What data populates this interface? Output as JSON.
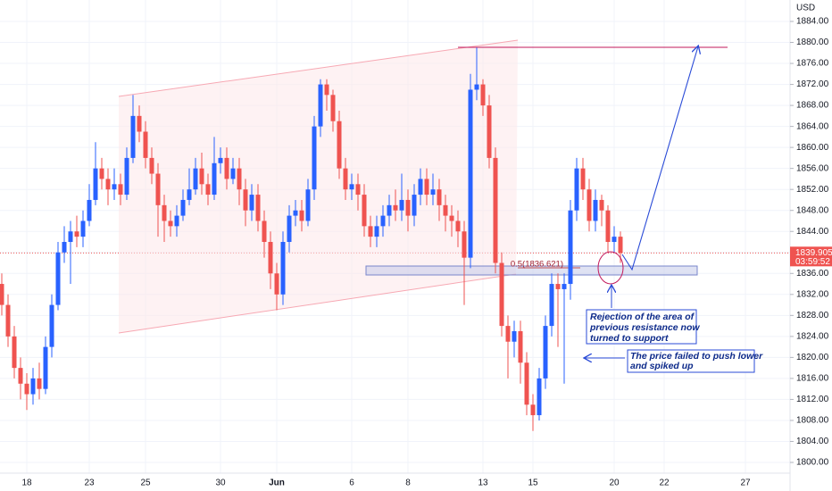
{
  "chart_data": {
    "type": "candlestick",
    "y_axis_label": "USD",
    "countdown": "03:59:52",
    "fib_label": "0.5(1836.621)",
    "annotations": [
      {
        "lines": [
          "Rejection of the area of",
          "previous resistance now",
          "turned to support"
        ]
      },
      {
        "lines": [
          "The price failed to push lower",
          "and spiked up"
        ]
      }
    ],
    "up_color": "#2962ff",
    "down_color": "#ef5350",
    "ylim": [
      1798,
      1888
    ],
    "yticks": [
      {
        "value": 1800,
        "label": "1800.00"
      },
      {
        "value": 1804,
        "label": "1804.00"
      },
      {
        "value": 1808,
        "label": "1808.00"
      },
      {
        "value": 1812,
        "label": "1812.00"
      },
      {
        "value": 1816,
        "label": "1816.00"
      },
      {
        "value": 1820,
        "label": "1820.00"
      },
      {
        "value": 1824,
        "label": "1824.00"
      },
      {
        "value": 1828,
        "label": "1828.00"
      },
      {
        "value": 1832,
        "label": "1832.00"
      },
      {
        "value": 1836,
        "label": "1836.00"
      },
      {
        "value": 1840,
        "label": "1840.00"
      },
      {
        "value": 1844,
        "label": "1844.00"
      },
      {
        "value": 1848,
        "label": "1848.00"
      },
      {
        "value": 1852,
        "label": "1852.00"
      },
      {
        "value": 1856,
        "label": "1856.00"
      },
      {
        "value": 1860,
        "label": "1860.00"
      },
      {
        "value": 1864,
        "label": "1864.00"
      },
      {
        "value": 1868,
        "label": "1868.00"
      },
      {
        "value": 1872,
        "label": "1872.00"
      },
      {
        "value": 1876,
        "label": "1876.00"
      },
      {
        "value": 1880,
        "label": "1880.00"
      },
      {
        "value": 1884,
        "label": "1884.00"
      }
    ],
    "categories": [
      null,
      null,
      null,
      null,
      "18",
      null,
      null,
      null,
      null,
      null,
      null,
      null,
      null,
      null,
      "23",
      null,
      null,
      null,
      null,
      null,
      null,
      null,
      null,
      "25",
      null,
      null,
      null,
      null,
      null,
      null,
      null,
      null,
      null,
      null,
      null,
      "30",
      null,
      null,
      null,
      null,
      null,
      null,
      null,
      null,
      "Jun",
      null,
      null,
      null,
      null,
      null,
      null,
      null,
      null,
      null,
      null,
      null,
      "6",
      null,
      null,
      null,
      null,
      null,
      null,
      null,
      null,
      "8",
      null,
      null,
      null,
      null,
      null,
      null,
      null,
      null,
      null,
      null,
      null,
      "13",
      null,
      null,
      null,
      null,
      null,
      null,
      null,
      "15",
      null,
      null,
      null,
      null,
      null,
      null,
      null,
      null,
      null,
      null,
      null,
      null,
      "20",
      null,
      null,
      null,
      null,
      null,
      null,
      null,
      "22",
      null,
      null,
      null,
      null,
      null,
      null,
      null,
      null,
      null,
      null,
      null,
      null,
      "27",
      null,
      null,
      null,
      null,
      null,
      null
    ],
    "open": [
      1834,
      1830,
      1824,
      1818,
      1815,
      1813,
      1816,
      1814,
      1822,
      1830,
      1840,
      1842,
      1844,
      1843,
      1846,
      1850,
      1856,
      1854,
      1852,
      1853,
      1851,
      1858,
      1866,
      1863,
      1858,
      1855,
      1849,
      1846,
      1845,
      1847,
      1850,
      1852,
      1856,
      1853,
      1851,
      1857,
      1858,
      1854,
      1856,
      1852,
      1848,
      1851,
      1846,
      1842,
      1836,
      1832,
      1842,
      1847,
      1848,
      1846,
      1852,
      1864,
      1872,
      1870,
      1865,
      1856,
      1852,
      1853,
      1851,
      1845,
      1843,
      1845,
      1847,
      1849,
      1848,
      1850,
      1847,
      1851,
      1854,
      1851,
      1852,
      1849,
      1847,
      1846,
      1844,
      1839,
      1871,
      1872,
      1868,
      1858,
      1838,
      1826,
      1823,
      1825,
      1819,
      1811,
      1809,
      1816,
      1826,
      1834,
      1833,
      1834,
      1848,
      1856,
      1852,
      1846,
      1850,
      1848,
      1842,
      1843,
      null,
      null,
      null,
      null,
      null,
      null,
      null,
      null,
      null,
      null,
      null,
      null,
      null,
      null,
      null,
      null,
      null,
      null,
      null,
      null,
      null,
      null,
      null,
      null,
      null,
      null
    ],
    "high": [
      1836,
      1832,
      1826,
      1820,
      1817,
      1818,
      1819,
      1824,
      1832,
      1842,
      1845,
      1846,
      1847,
      1848,
      1853,
      1861,
      1858,
      1856,
      1856,
      1855,
      1860,
      1870,
      1868,
      1865,
      1860,
      1857,
      1851,
      1848,
      1849,
      1852,
      1856,
      1858,
      1859,
      1855,
      1862,
      1860,
      1860,
      1858,
      1858,
      1854,
      1853,
      1853,
      1848,
      1844,
      1838,
      1844,
      1849,
      1850,
      1850,
      1854,
      1866,
      1873,
      1873,
      1871,
      1867,
      1858,
      1855,
      1855,
      1853,
      1847,
      1847,
      1849,
      1851,
      1852,
      1855,
      1852,
      1853,
      1856,
      1856,
      1855,
      1854,
      1851,
      1849,
      1848,
      1846,
      1874,
      1879,
      1873,
      1870,
      1860,
      1840,
      1828,
      1827,
      1827,
      1821,
      1813,
      1818,
      1828,
      1836,
      1836,
      1836,
      1850,
      1858,
      1858,
      1854,
      1852,
      1851,
      1849,
      1845,
      1844,
      null,
      null,
      null,
      null,
      null,
      null,
      null,
      null,
      null,
      null,
      null,
      null,
      null,
      null,
      null,
      null,
      null,
      null,
      null,
      null,
      null,
      null,
      null,
      null,
      null,
      null
    ],
    "low": [
      1828,
      1822,
      1816,
      1812,
      1810,
      1811,
      1812,
      1813,
      1820,
      1829,
      1838,
      1834,
      1841,
      1841,
      1845,
      1849,
      1852,
      1849,
      1850,
      1849,
      1850,
      1857,
      1861,
      1856,
      1853,
      1843,
      1842,
      1843,
      1843,
      1846,
      1849,
      1851,
      1851,
      1849,
      1850,
      1855,
      1852,
      1853,
      1849,
      1845,
      1846,
      1844,
      1839,
      1833,
      1829,
      1830,
      1840,
      1845,
      1844,
      1845,
      1850,
      1862,
      1867,
      1863,
      1854,
      1850,
      1850,
      1848,
      1843,
      1841,
      1841,
      1843,
      1845,
      1846,
      1846,
      1844,
      1845,
      1849,
      1849,
      1849,
      1846,
      1844,
      1843,
      1841,
      1830,
      1837,
      1869,
      1866,
      1856,
      1836,
      1824,
      1816,
      1820,
      1815,
      1809,
      1806,
      1808,
      1814,
      1824,
      1822,
      1815,
      1831,
      1846,
      1850,
      1844,
      1844,
      1845,
      1840,
      1840,
      1838,
      null,
      null,
      null,
      null,
      null,
      null,
      null,
      null,
      null,
      null,
      null,
      null,
      null,
      null,
      null,
      null,
      null,
      null,
      null,
      null,
      null,
      null,
      null,
      null,
      null,
      null
    ],
    "close": [
      1830,
      1824,
      1818,
      1815,
      1813,
      1816,
      1814,
      1822,
      1830,
      1840,
      1842,
      1844,
      1843,
      1846,
      1850,
      1856,
      1854,
      1852,
      1853,
      1851,
      1858,
      1866,
      1863,
      1858,
      1855,
      1849,
      1846,
      1845,
      1847,
      1850,
      1852,
      1856,
      1853,
      1851,
      1857,
      1858,
      1854,
      1856,
      1852,
      1848,
      1851,
      1846,
      1842,
      1836,
      1832,
      1842,
      1847,
      1848,
      1846,
      1852,
      1864,
      1872,
      1870,
      1865,
      1856,
      1852,
      1853,
      1851,
      1845,
      1843,
      1845,
      1847,
      1849,
      1848,
      1850,
      1847,
      1851,
      1854,
      1851,
      1852,
      1849,
      1847,
      1846,
      1844,
      1839,
      1871,
      1872,
      1868,
      1858,
      1838,
      1826,
      1823,
      1825,
      1819,
      1811,
      1809,
      1816,
      1826,
      1834,
      1833,
      1834,
      1848,
      1856,
      1852,
      1846,
      1850,
      1848,
      1842,
      1843,
      1839.905,
      null,
      null,
      null,
      null,
      null,
      null,
      null,
      null,
      null,
      null,
      null,
      null,
      null,
      null,
      null,
      null,
      null,
      null,
      null,
      null,
      null,
      null,
      null,
      null,
      null,
      null
    ]
  }
}
